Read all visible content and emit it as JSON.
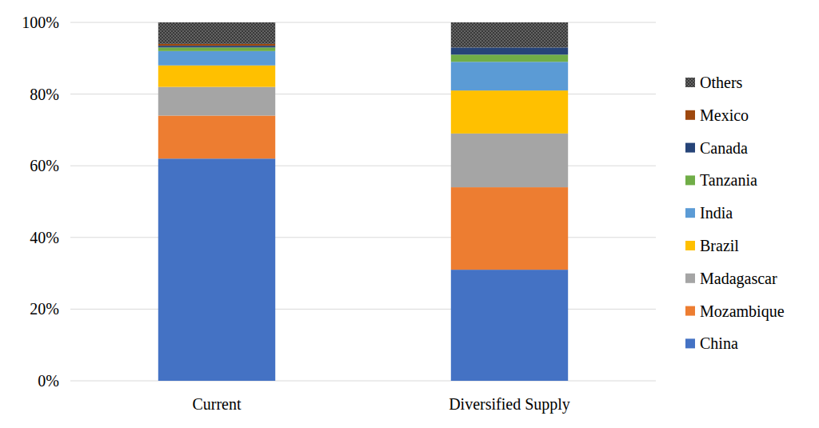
{
  "chart_data": {
    "type": "bar",
    "stacked": true,
    "grid": true,
    "legend": "right",
    "categories": [
      "Current",
      "Diversified Supply"
    ],
    "ylim": [
      0,
      100
    ],
    "yticks": [
      {
        "value": 0,
        "label": "0%"
      },
      {
        "value": 20,
        "label": "20%"
      },
      {
        "value": 40,
        "label": "40%"
      },
      {
        "value": 60,
        "label": "60%"
      },
      {
        "value": 80,
        "label": "80%"
      },
      {
        "value": 100,
        "label": "100%"
      }
    ],
    "series": [
      {
        "name": "China",
        "color": "#4472c4",
        "values": [
          62,
          31
        ]
      },
      {
        "name": "Mozambique",
        "color": "#ed7d31",
        "values": [
          12,
          23
        ]
      },
      {
        "name": "Madagascar",
        "color": "#a5a5a5",
        "values": [
          8,
          15
        ]
      },
      {
        "name": "Brazil",
        "color": "#ffc000",
        "values": [
          6,
          12
        ]
      },
      {
        "name": "India",
        "color": "#5b9bd5",
        "values": [
          4,
          8
        ]
      },
      {
        "name": "Tanzania",
        "color": "#70ad47",
        "values": [
          1,
          2
        ]
      },
      {
        "name": "Canada",
        "color": "#264478",
        "values": [
          0.5,
          2
        ]
      },
      {
        "name": "Mexico",
        "color": "#9e480e",
        "values": [
          0.5,
          0
        ]
      },
      {
        "name": "Others",
        "color": "#636363",
        "values": [
          6,
          7
        ]
      }
    ]
  }
}
